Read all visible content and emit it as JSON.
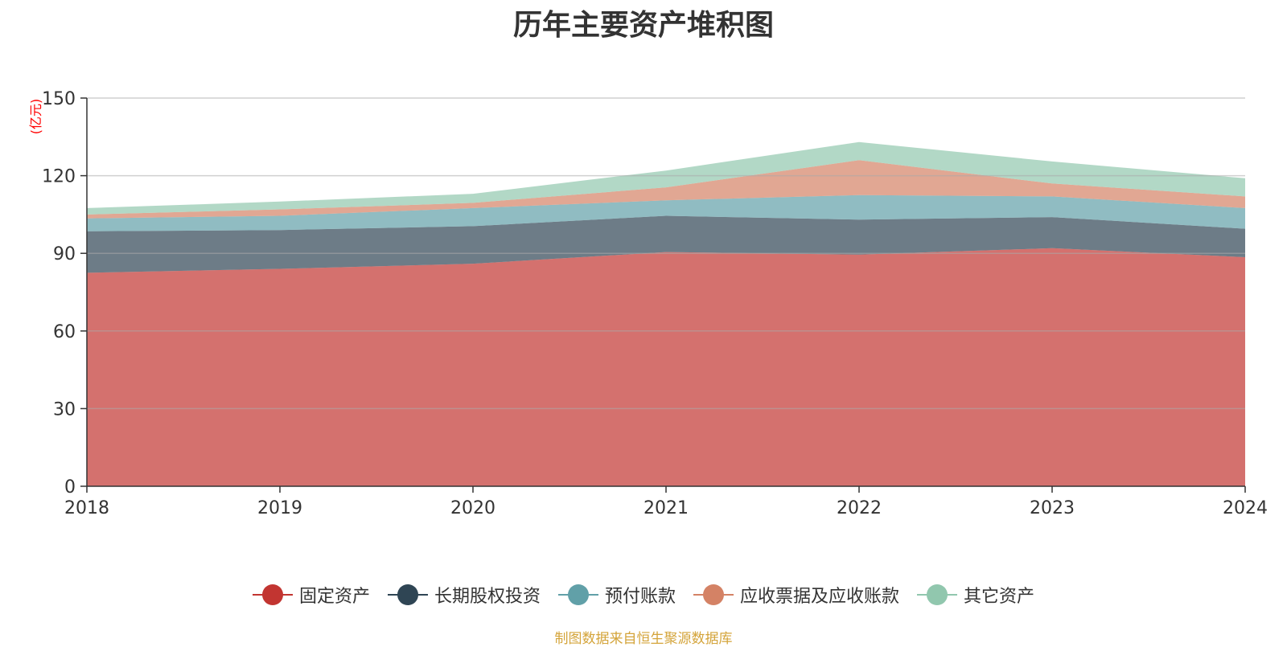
{
  "chart_data": {
    "type": "area",
    "stacked": true,
    "title": "历年主要资产堆积图",
    "ylabel": "(亿元)",
    "x": [
      "2018",
      "2019",
      "2020",
      "2021",
      "2022",
      "2023",
      "2024"
    ],
    "ylim": [
      0,
      150
    ],
    "yticks": [
      0,
      30,
      60,
      90,
      120,
      150
    ],
    "grid": true,
    "legend_position": "bottom",
    "series": [
      {
        "name": "固定资产",
        "color": "#c23531",
        "values": [
          82.5,
          84,
          86,
          90.5,
          89.5,
          92,
          88.5
        ]
      },
      {
        "name": "长期股权投资",
        "color": "#2f4554",
        "values": [
          16,
          15,
          14.5,
          14,
          13.5,
          12,
          11
        ]
      },
      {
        "name": "预付账款",
        "color": "#61a0a8",
        "values": [
          5,
          5.5,
          7,
          6,
          9.5,
          8,
          8
        ]
      },
      {
        "name": "应收票据及应收账款",
        "color": "#d48265",
        "values": [
          1.5,
          2.5,
          2,
          5,
          13.5,
          5,
          4.5
        ]
      },
      {
        "name": "其它资产",
        "color": "#91c7ae",
        "values": [
          2.5,
          3,
          3.5,
          6.5,
          7,
          8.5,
          7
        ]
      }
    ]
  },
  "source_note": "制图数据来自恒生聚源数据库"
}
